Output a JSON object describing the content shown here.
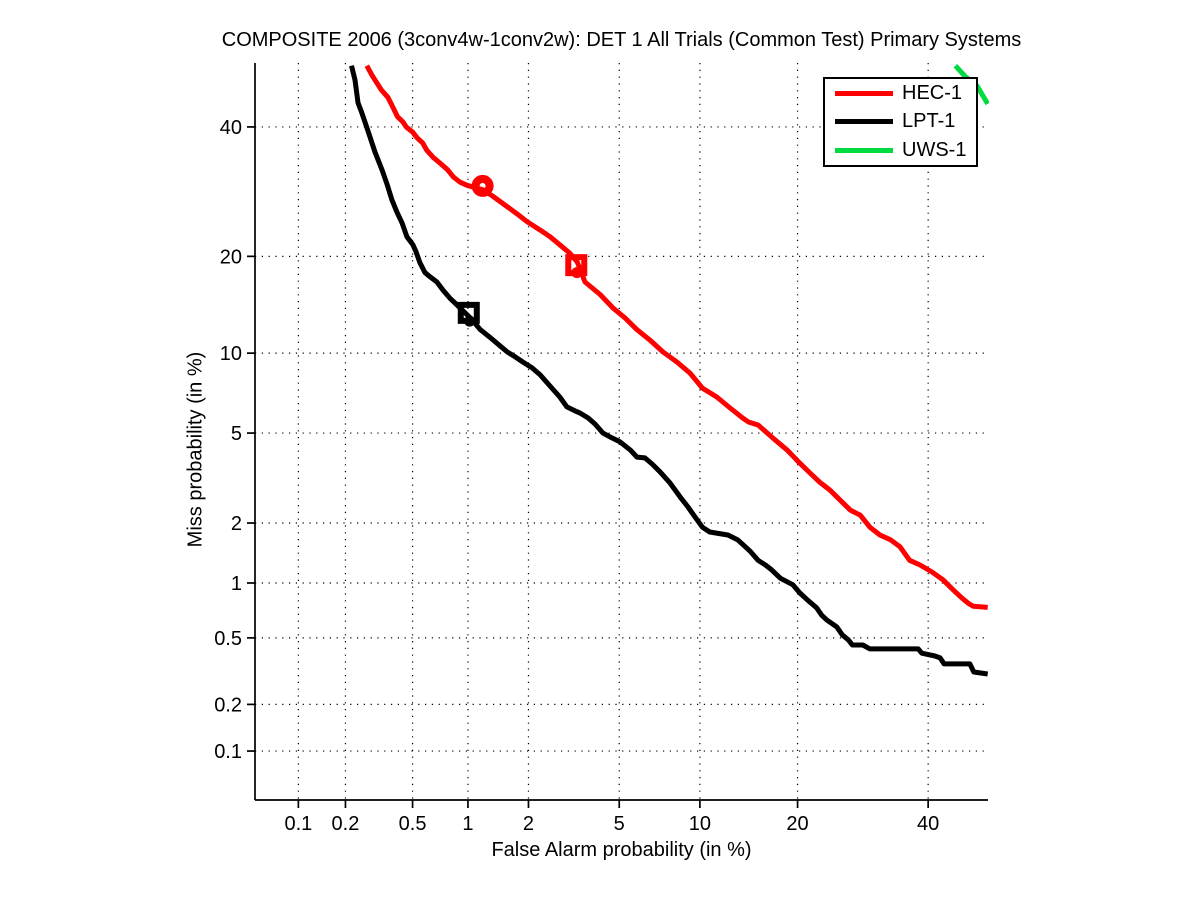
{
  "chart_data": {
    "type": "line",
    "title": "COMPOSITE 2006 (3conv4w-1conv2w): DET 1 All Trials (Common Test) Primary Systems",
    "xlabel": "False Alarm probability (in %)",
    "ylabel": "Miss probability (in %)",
    "xscale": "probit",
    "yscale": "probit",
    "xlim": [
      0.05,
      50.7
    ],
    "ylim": [
      0.046,
      51.5
    ],
    "grid": "dotted",
    "grid_color": "#000000",
    "xticks": [
      0.1,
      0.2,
      0.5,
      1,
      2,
      5,
      10,
      20,
      40
    ],
    "xtick_labels": [
      "0.1",
      "0.2",
      "0.5",
      "1",
      "2",
      "5",
      "10",
      "20",
      "40"
    ],
    "yticks": [
      40,
      20,
      10,
      5,
      2,
      1,
      0.5,
      0.2,
      0.1
    ],
    "ytick_labels": [
      "40",
      "20",
      "10",
      "5",
      "2",
      "1",
      "0.5",
      "0.2",
      "0.1"
    ],
    "legend": {
      "position": "top-right",
      "entries": [
        {
          "label": "HEC-1",
          "color": "#ff0000"
        },
        {
          "label": "LPT-1",
          "color": "#000000"
        },
        {
          "label": "UWS-1",
          "color": "#00dc40"
        }
      ]
    },
    "series": [
      {
        "name": "HEC-1",
        "color": "#ff0000",
        "points": [
          [
            0.27,
            51
          ],
          [
            0.29,
            49.3
          ],
          [
            0.31,
            47.9
          ],
          [
            0.33,
            46.6
          ],
          [
            0.36,
            45.3
          ],
          [
            0.38,
            43.9
          ],
          [
            0.41,
            41.8
          ],
          [
            0.44,
            40.9
          ],
          [
            0.46,
            40.0
          ],
          [
            0.5,
            39.1
          ],
          [
            0.53,
            38.1
          ],
          [
            0.57,
            37.2
          ],
          [
            0.6,
            36.0
          ],
          [
            0.65,
            34.8
          ],
          [
            0.71,
            33.8
          ],
          [
            0.78,
            32.7
          ],
          [
            0.84,
            31.5
          ],
          [
            0.91,
            30.7
          ],
          [
            0.99,
            30.2
          ],
          [
            1.1,
            29.8
          ],
          [
            1.19,
            29.5
          ],
          [
            1.34,
            28.5
          ],
          [
            1.58,
            26.9
          ],
          [
            1.77,
            25.8
          ],
          [
            1.97,
            24.7
          ],
          [
            2.27,
            23.5
          ],
          [
            2.52,
            22.6
          ],
          [
            2.79,
            21.5
          ],
          [
            3.09,
            20.4
          ],
          [
            3.33,
            19.3
          ],
          [
            3.6,
            16.9
          ],
          [
            4.17,
            15.5
          ],
          [
            4.71,
            14.1
          ],
          [
            5.28,
            13.1
          ],
          [
            5.88,
            12.0
          ],
          [
            6.58,
            11.1
          ],
          [
            7.38,
            10.1
          ],
          [
            8.3,
            9.31
          ],
          [
            9.24,
            8.5
          ],
          [
            10.2,
            7.49
          ],
          [
            11.4,
            6.93
          ],
          [
            12.6,
            6.29
          ],
          [
            13.8,
            5.75
          ],
          [
            14.4,
            5.54
          ],
          [
            15.4,
            5.39
          ],
          [
            17.0,
            4.78
          ],
          [
            18.7,
            4.26
          ],
          [
            20.3,
            3.74
          ],
          [
            21.6,
            3.39
          ],
          [
            22.9,
            3.09
          ],
          [
            24.3,
            2.85
          ],
          [
            25.8,
            2.56
          ],
          [
            27.3,
            2.3
          ],
          [
            28.8,
            2.18
          ],
          [
            30.3,
            1.91
          ],
          [
            31.9,
            1.75
          ],
          [
            33.6,
            1.66
          ],
          [
            35.2,
            1.53
          ],
          [
            36.8,
            1.31
          ],
          [
            38.6,
            1.24
          ],
          [
            40.7,
            1.14
          ],
          [
            42.6,
            1.04
          ],
          [
            44.4,
            0.92
          ],
          [
            46.0,
            0.83
          ],
          [
            47.1,
            0.78
          ],
          [
            48.0,
            0.75
          ],
          [
            50.6,
            0.74
          ]
        ],
        "markers": [
          {
            "shape": "circle",
            "fa": 1.19,
            "miss": 30.1
          },
          {
            "shape": "square",
            "fa": 3.3,
            "miss": 18.9
          },
          {
            "shape": "dot",
            "fa": 3.32,
            "miss": 18.0
          }
        ]
      },
      {
        "name": "LPT-1",
        "color": "#000000",
        "points": [
          [
            0.218,
            51
          ],
          [
            0.229,
            48.4
          ],
          [
            0.239,
            44.3
          ],
          [
            0.252,
            42.5
          ],
          [
            0.263,
            40.9
          ],
          [
            0.282,
            38.3
          ],
          [
            0.302,
            35.7
          ],
          [
            0.333,
            32.7
          ],
          [
            0.357,
            30.3
          ],
          [
            0.381,
            27.9
          ],
          [
            0.407,
            26.1
          ],
          [
            0.436,
            24.5
          ],
          [
            0.464,
            22.6
          ],
          [
            0.502,
            21.5
          ],
          [
            0.523,
            20.6
          ],
          [
            0.55,
            19.2
          ],
          [
            0.587,
            18.0
          ],
          [
            0.626,
            17.5
          ],
          [
            0.683,
            16.9
          ],
          [
            0.736,
            16.0
          ],
          [
            0.804,
            15.1
          ],
          [
            0.855,
            14.6
          ],
          [
            0.932,
            13.9
          ],
          [
            1.03,
            13.1
          ],
          [
            1.16,
            12.0
          ],
          [
            1.3,
            11.3
          ],
          [
            1.41,
            10.8
          ],
          [
            1.58,
            10.1
          ],
          [
            1.73,
            9.7
          ],
          [
            1.88,
            9.31
          ],
          [
            2.08,
            8.87
          ],
          [
            2.27,
            8.37
          ],
          [
            2.52,
            7.62
          ],
          [
            2.79,
            6.93
          ],
          [
            3.0,
            6.35
          ],
          [
            3.26,
            6.13
          ],
          [
            3.43,
            6.01
          ],
          [
            3.71,
            5.75
          ],
          [
            3.97,
            5.44
          ],
          [
            4.29,
            5.0
          ],
          [
            4.66,
            4.78
          ],
          [
            5.04,
            4.6
          ],
          [
            5.53,
            4.26
          ],
          [
            5.88,
            3.97
          ],
          [
            6.31,
            3.94
          ],
          [
            6.72,
            3.71
          ],
          [
            7.2,
            3.43
          ],
          [
            7.84,
            3.06
          ],
          [
            8.52,
            2.65
          ],
          [
            9.09,
            2.38
          ],
          [
            9.61,
            2.14
          ],
          [
            10.2,
            1.91
          ],
          [
            10.8,
            1.81
          ],
          [
            12.4,
            1.75
          ],
          [
            13.3,
            1.66
          ],
          [
            13.9,
            1.56
          ],
          [
            14.6,
            1.45
          ],
          [
            15.4,
            1.31
          ],
          [
            16.2,
            1.24
          ],
          [
            16.9,
            1.17
          ],
          [
            17.9,
            1.06
          ],
          [
            18.8,
            1.01
          ],
          [
            19.4,
            0.98
          ],
          [
            20.3,
            0.885
          ],
          [
            21.3,
            0.81
          ],
          [
            22.5,
            0.735
          ],
          [
            23.2,
            0.67
          ],
          [
            23.9,
            0.63
          ],
          [
            25.3,
            0.577
          ],
          [
            26.1,
            0.52
          ],
          [
            27.0,
            0.487
          ],
          [
            27.6,
            0.455
          ],
          [
            29.2,
            0.455
          ],
          [
            30.3,
            0.432
          ],
          [
            38.3,
            0.432
          ],
          [
            38.9,
            0.408
          ],
          [
            41.2,
            0.393
          ],
          [
            42.1,
            0.383
          ],
          [
            42.8,
            0.353
          ],
          [
            47.4,
            0.353
          ],
          [
            48.1,
            0.316
          ],
          [
            50.6,
            0.307
          ]
        ],
        "markers": [
          {
            "shape": "square",
            "fa": 1.01,
            "miss": 13.6
          },
          {
            "shape": "dot",
            "fa": 1.02,
            "miss": 12.8
          }
        ]
      },
      {
        "name": "UWS-1",
        "color": "#00dc40",
        "points": [
          [
            44.8,
            51
          ],
          [
            46.5,
            49.1
          ],
          [
            48.7,
            47.3
          ],
          [
            50.6,
            44.1
          ]
        ],
        "markers": []
      }
    ]
  }
}
